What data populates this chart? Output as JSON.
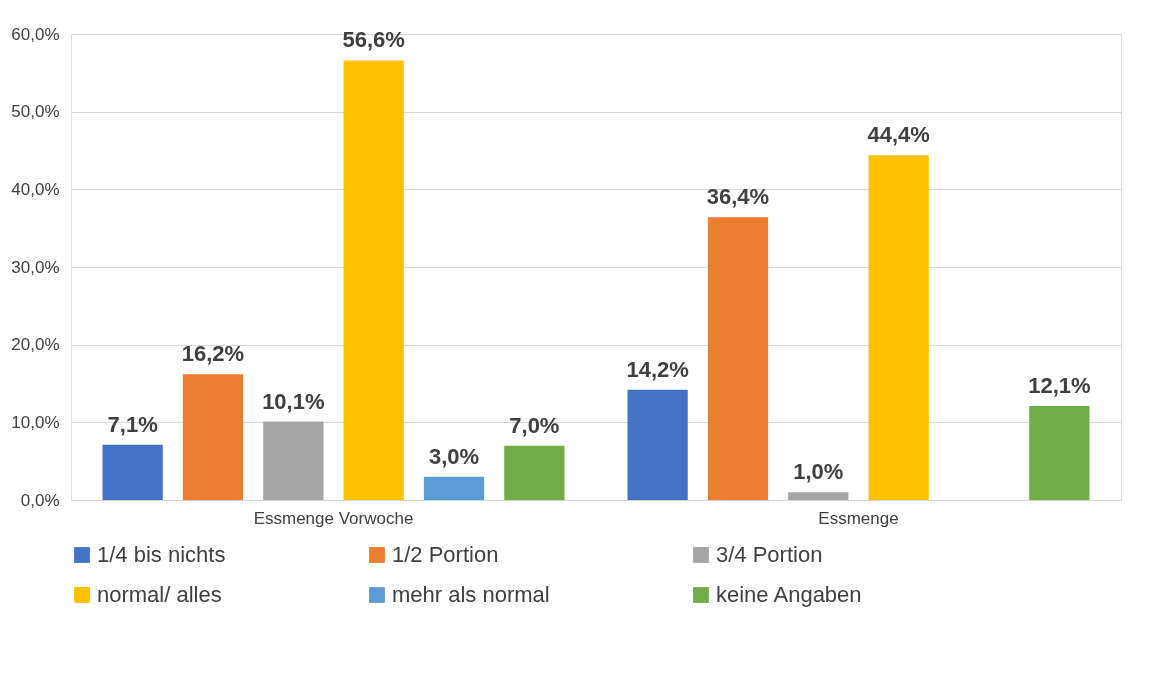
{
  "chart_data": {
    "type": "bar",
    "categories": [
      "Essmenge Vorwoche",
      "Essmenge"
    ],
    "series": [
      {
        "name": "1/4 bis nichts",
        "color": "#4472c4",
        "values": [
          7.1,
          14.2
        ],
        "value_labels": [
          "7,1%",
          "14,2%"
        ]
      },
      {
        "name": "1/2 Portion",
        "color": "#ed7d31",
        "values": [
          16.2,
          36.4
        ],
        "value_labels": [
          "16,2%",
          "36,4%"
        ]
      },
      {
        "name": " 3/4 Portion",
        "color": "#a5a5a5",
        "values": [
          10.1,
          1.0
        ],
        "value_labels": [
          "10,1%",
          "1,0%"
        ]
      },
      {
        "name": "normal/ alles",
        "color": "#ffc000",
        "values": [
          56.6,
          44.4
        ],
        "value_labels": [
          "56,6%",
          "44,4%"
        ]
      },
      {
        "name": "mehr als normal",
        "color": "#5b9bd5",
        "values": [
          3.0,
          null
        ],
        "value_labels": [
          "3,0%",
          null
        ]
      },
      {
        "name": "keine Angaben",
        "color": "#70ad47",
        "values": [
          7.0,
          12.1
        ],
        "value_labels": [
          "7,0%",
          "12,1%"
        ]
      }
    ],
    "ylim": [
      0,
      60
    ],
    "yticks": [
      {
        "value": 0,
        "label": "0,0%"
      },
      {
        "value": 10,
        "label": "10,0%"
      },
      {
        "value": 20,
        "label": "20,0%"
      },
      {
        "value": 30,
        "label": "30,0%"
      },
      {
        "value": 40,
        "label": "40,0%"
      },
      {
        "value": 50,
        "label": "50,0%"
      },
      {
        "value": 60,
        "label": "60,0%"
      }
    ],
    "grid": "y",
    "legend": "bottom"
  }
}
